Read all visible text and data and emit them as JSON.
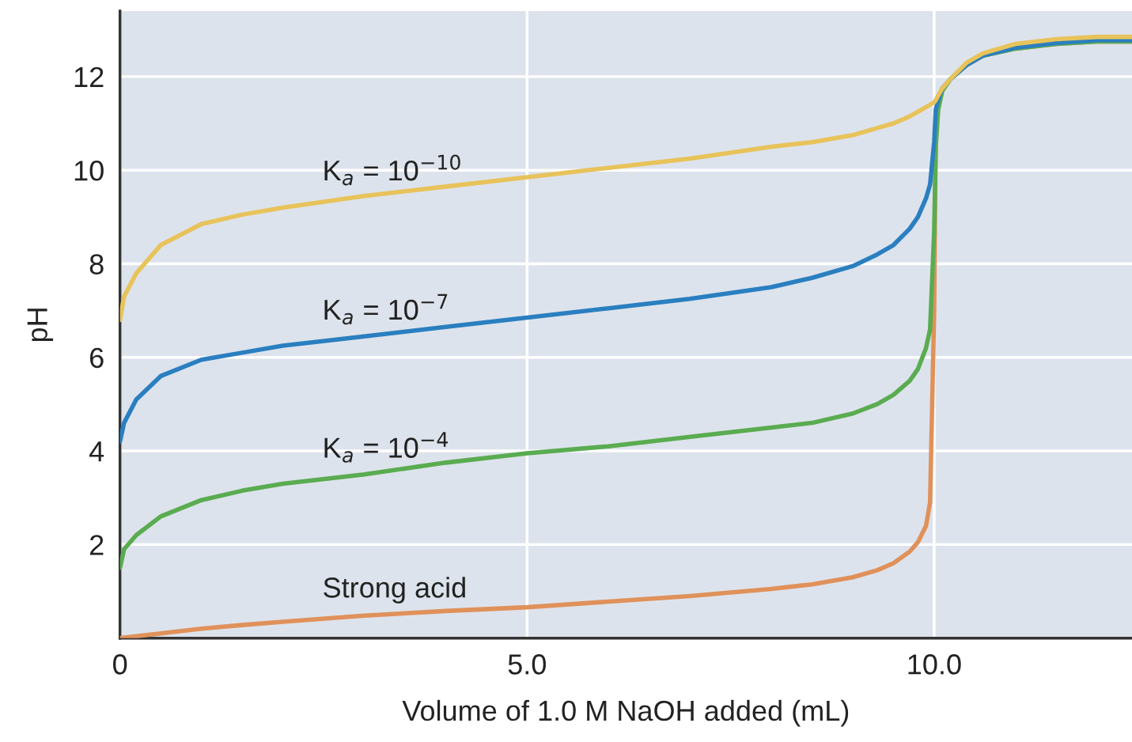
{
  "chart_data": {
    "type": "line",
    "xlabel": "Volume of 1.0 M NaOH added (mL)",
    "ylabel": "pH",
    "x": [
      0,
      0.05,
      0.2,
      0.5,
      1,
      1.5,
      2,
      3,
      4,
      5,
      6,
      7,
      8,
      8.5,
      9,
      9.3,
      9.5,
      9.7,
      9.8,
      9.9,
      9.95,
      10,
      10.02,
      10.05,
      10.1,
      10.2,
      10.4,
      10.6,
      11,
      11.5,
      12,
      12.43
    ],
    "series": [
      {
        "name": "Strong acid",
        "color": "#e0915a",
        "values": [
          0,
          0.01,
          0.04,
          0.1,
          0.2,
          0.28,
          0.35,
          0.48,
          0.58,
          0.66,
          0.78,
          0.9,
          1.05,
          1.15,
          1.3,
          1.45,
          1.6,
          1.85,
          2.05,
          2.4,
          2.9,
          7.0,
          10.9,
          11.4,
          11.7,
          11.95,
          12.25,
          12.45,
          12.6,
          12.7,
          12.75,
          12.75
        ]
      },
      {
        "name": "K$_{a}$ = 10$^{−4}$",
        "color": "#5aac50",
        "values": [
          1.5,
          1.9,
          2.2,
          2.6,
          2.95,
          3.15,
          3.3,
          3.5,
          3.75,
          3.95,
          4.1,
          4.3,
          4.5,
          4.6,
          4.8,
          5.0,
          5.2,
          5.5,
          5.75,
          6.2,
          6.6,
          8.7,
          10.5,
          11.3,
          11.7,
          11.95,
          12.25,
          12.45,
          12.6,
          12.7,
          12.75,
          12.75
        ]
      },
      {
        "name": "K$_{a}$ = 10$^{−7}$",
        "color": "#2a7fc0",
        "values": [
          4.2,
          4.6,
          5.1,
          5.6,
          5.95,
          6.1,
          6.25,
          6.45,
          6.65,
          6.85,
          7.05,
          7.25,
          7.5,
          7.7,
          7.95,
          8.2,
          8.4,
          8.75,
          9.0,
          9.4,
          9.7,
          10.6,
          11.3,
          11.5,
          11.75,
          11.95,
          12.25,
          12.45,
          12.62,
          12.72,
          12.78,
          12.78
        ]
      },
      {
        "name": "K$_{a}$ = 10$^{−10}$",
        "color": "#e8c35a",
        "values": [
          6.8,
          7.3,
          7.8,
          8.4,
          8.85,
          9.05,
          9.2,
          9.45,
          9.65,
          9.85,
          10.05,
          10.25,
          10.5,
          10.6,
          10.75,
          10.9,
          11.0,
          11.15,
          11.25,
          11.35,
          11.4,
          11.45,
          11.5,
          11.6,
          11.75,
          11.95,
          12.3,
          12.5,
          12.7,
          12.8,
          12.85,
          12.85
        ]
      }
    ],
    "xlim": [
      0,
      12.43
    ],
    "ylim": [
      0,
      13.4
    ],
    "xticks": [
      0,
      {
        "value": 5,
        "label": "5.0"
      },
      {
        "value": 10,
        "label": "10.0"
      }
    ],
    "yticks": [
      2,
      4,
      6,
      8,
      10,
      12
    ],
    "grid": true,
    "line_style": "solid",
    "marker": "none"
  }
}
